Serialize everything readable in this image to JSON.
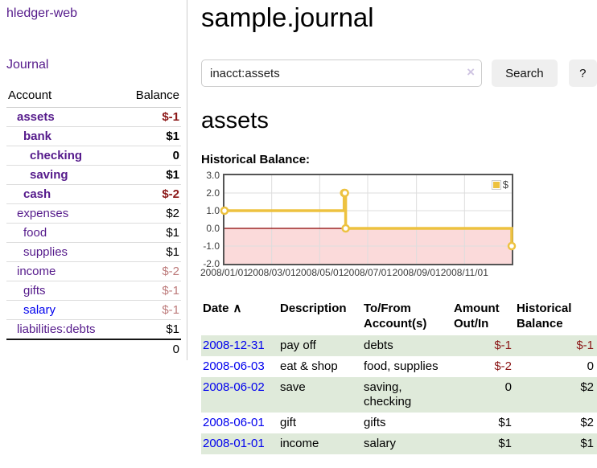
{
  "colors": {
    "link_visited_purple": "#551a8b",
    "link_blue": "#0000ee",
    "negative_strong": "#8b1717",
    "negative_faded": "#bd7b7b",
    "row_stripe_green": "#dfeada",
    "button_gray": "#efefef",
    "chart_series_gold": "#edc240",
    "chart_negative_fill": "#fbdada",
    "chart_zero_line": "#8b0000"
  },
  "sidebar": {
    "app_title": "hledger-web",
    "nav_journal": "Journal",
    "table": {
      "headers": [
        "Account",
        "Balance"
      ],
      "rows": [
        {
          "label": "assets",
          "level": 1,
          "bold": true,
          "link_color": "purple",
          "balance": "$-1",
          "amount_tone": "negative-strong"
        },
        {
          "label": "bank",
          "level": 2,
          "bold": true,
          "link_color": "purple",
          "balance": "$1",
          "amount_tone": "normal"
        },
        {
          "label": "checking",
          "level": 3,
          "bold": true,
          "link_color": "purple",
          "balance": "0",
          "amount_tone": "normal"
        },
        {
          "label": "saving",
          "level": 3,
          "bold": true,
          "link_color": "purple",
          "balance": "$1",
          "amount_tone": "normal"
        },
        {
          "label": "cash",
          "level": 2,
          "bold": true,
          "link_color": "purple",
          "balance": "$-2",
          "amount_tone": "negative-strong"
        },
        {
          "label": "expenses",
          "level": 1,
          "bold": false,
          "link_color": "purple",
          "balance": "$2",
          "amount_tone": "normal"
        },
        {
          "label": "food",
          "level": 2,
          "bold": false,
          "link_color": "purple",
          "balance": "$1",
          "amount_tone": "normal"
        },
        {
          "label": "supplies",
          "level": 2,
          "bold": false,
          "link_color": "purple",
          "balance": "$1",
          "amount_tone": "normal"
        },
        {
          "label": "income",
          "level": 1,
          "bold": false,
          "link_color": "purple",
          "balance": "$-2",
          "amount_tone": "negative-faded"
        },
        {
          "label": "gifts",
          "level": 2,
          "bold": false,
          "link_color": "purple",
          "balance": "$-1",
          "amount_tone": "negative-faded"
        },
        {
          "label": "salary",
          "level": 2,
          "bold": false,
          "link_color": "blue",
          "balance": "$-1",
          "amount_tone": "negative-faded"
        },
        {
          "label": "liabilities:debts",
          "level": 1,
          "bold": false,
          "link_color": "purple",
          "balance": "$1",
          "amount_tone": "normal"
        }
      ],
      "total": "0"
    }
  },
  "main": {
    "title": "sample.journal",
    "search": {
      "value": "inacct:assets",
      "clear_icon": "×",
      "button_label": "Search",
      "help_label": "?"
    },
    "account_heading": "assets",
    "chart_label": "Historical Balance:",
    "register": {
      "headers": [
        "Date",
        "Description",
        "To/From Account(s)",
        "Amount Out/In",
        "Historical Balance"
      ],
      "sort_icon": "∧",
      "rows": [
        {
          "date": "2008-12-31",
          "description": "pay off",
          "accounts": "debts",
          "amount": "$-1",
          "amount_negative": true,
          "balance": "$-1",
          "balance_negative": true
        },
        {
          "date": "2008-06-03",
          "description": "eat & shop",
          "accounts": "food, supplies",
          "amount": "$-2",
          "amount_negative": true,
          "balance": "0",
          "balance_negative": false
        },
        {
          "date": "2008-06-02",
          "description": "save",
          "accounts": "saving, checking",
          "amount": "0",
          "amount_negative": false,
          "balance": "$2",
          "balance_negative": false
        },
        {
          "date": "2008-06-01",
          "description": "gift",
          "accounts": "gifts",
          "amount": "$1",
          "amount_negative": false,
          "balance": "$2",
          "balance_negative": false
        },
        {
          "date": "2008-01-01",
          "description": "income",
          "accounts": "salary",
          "amount": "$1",
          "amount_negative": false,
          "balance": "$1",
          "balance_negative": false
        }
      ]
    }
  },
  "chart_data": {
    "type": "line",
    "title": "Historical Balance",
    "x_range": [
      "2008-01-01",
      "2008-12-31"
    ],
    "y_range": [
      -2,
      3
    ],
    "x_ticks": [
      "2008/01/01",
      "2008/03/01",
      "2008/05/01",
      "2008/07/01",
      "2008/09/01",
      "2008/11/01"
    ],
    "y_ticks": [
      3.0,
      2.0,
      1.0,
      0.0,
      -1.0,
      -2.0
    ],
    "grid": true,
    "legend_position": "top-right",
    "step_line": true,
    "series": [
      {
        "name": "$",
        "color": "#edc240",
        "points": [
          [
            "2008-01-01",
            1
          ],
          [
            "2008-06-01",
            2
          ],
          [
            "2008-06-02",
            2
          ],
          [
            "2008-06-03",
            0
          ],
          [
            "2008-12-31",
            -1
          ]
        ]
      }
    ],
    "negative_region_fill": "#fbdada",
    "zero_line_color": "#8b0000",
    "grid_color": "#dddddd"
  }
}
